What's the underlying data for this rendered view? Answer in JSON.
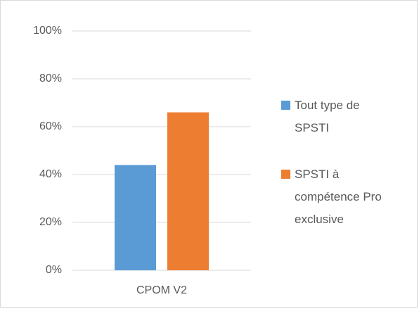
{
  "chart_data": {
    "type": "bar",
    "categories": [
      "CPOM V2"
    ],
    "series": [
      {
        "name": "Tout type de SPSTI",
        "color": "#5b9bd5",
        "values": [
          44
        ]
      },
      {
        "name": "SPSTI à compétence Pro exclusive",
        "color": "#ed7d31",
        "values": [
          66
        ]
      }
    ],
    "ylim": [
      0,
      100
    ],
    "yticks": [
      {
        "value": 0,
        "label": "0%"
      },
      {
        "value": 20,
        "label": "20%"
      },
      {
        "value": 40,
        "label": "40%"
      },
      {
        "value": 60,
        "label": "60%"
      },
      {
        "value": 80,
        "label": "80%"
      },
      {
        "value": 100,
        "label": "100%"
      }
    ],
    "grid": true,
    "legend": "right"
  }
}
